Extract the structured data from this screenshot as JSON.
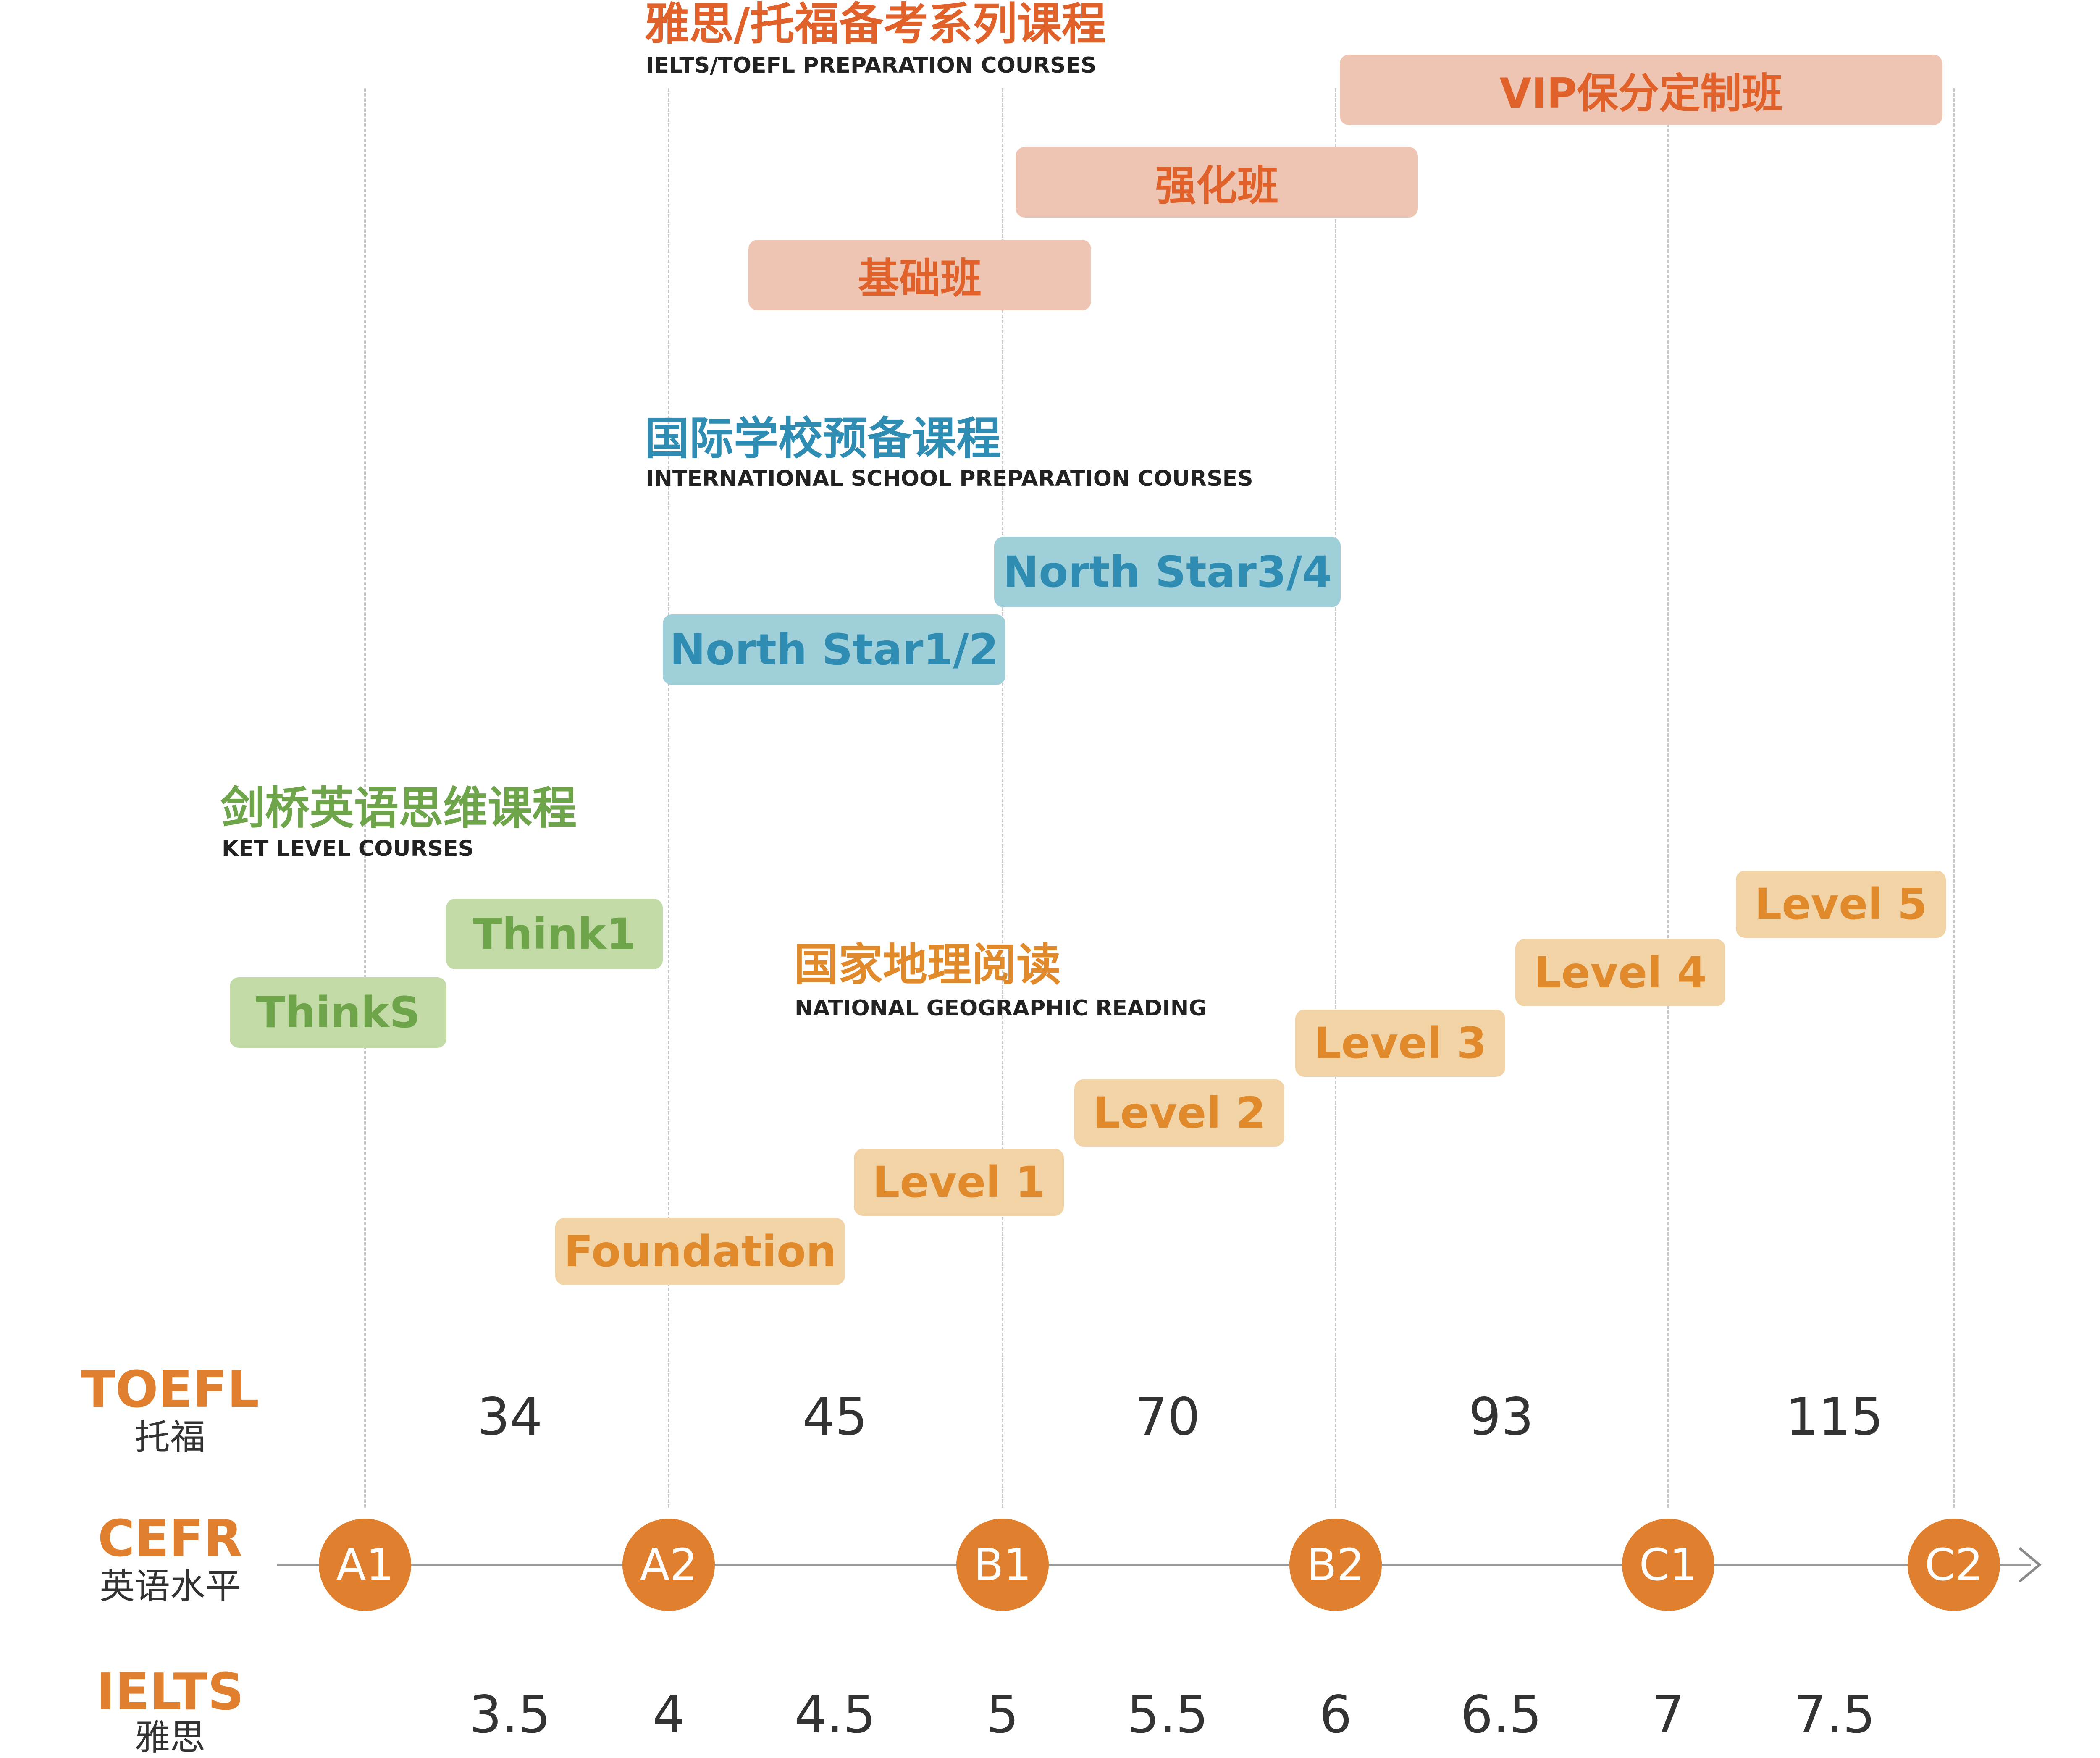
{
  "exam_section": {
    "title": "雅思/托福备考系列课程",
    "subtitle": "IELTS/TOEFL PREPARATION COURSES",
    "courses": [
      "VIP保分定制班",
      "强化班",
      "基础班"
    ]
  },
  "intl_section": {
    "title": "国际学校预备课程",
    "subtitle": "INTERNATIONAL SCHOOL PREPARATION COURSES",
    "courses": [
      "North Star3/4",
      "North Star1/2"
    ]
  },
  "ket_section": {
    "title": "剑桥英语思维课程",
    "subtitle": "KET LEVEL COURSES",
    "courses": [
      "Think1",
      "ThinkS"
    ]
  },
  "ng_section": {
    "title": "国家地理阅读",
    "subtitle": "NATIONAL GEOGRAPHIC READING",
    "courses": [
      "Level 5",
      "Level 4",
      "Level 3",
      "Level 2",
      "Level 1",
      "Foundation"
    ]
  },
  "scales": {
    "toefl": {
      "label": "TOEFL",
      "sublabel": "托福",
      "values": [
        "34",
        "45",
        "70",
        "93",
        "115"
      ]
    },
    "cefr": {
      "label": "CEFR",
      "sublabel": "英语水平",
      "levels": [
        "A1",
        "A2",
        "B1",
        "B2",
        "C1",
        "C2"
      ]
    },
    "ielts": {
      "label": "IELTS",
      "sublabel": "雅思",
      "values": [
        "3.5",
        "4",
        "4.5",
        "5",
        "5.5",
        "6",
        "6.5",
        "7",
        "7.5"
      ]
    }
  },
  "colors": {
    "exam": "#e0622a",
    "intl": "#2f8db4",
    "ket": "#6ea44a",
    "ng": "#e08a2c",
    "cefr_node": "#e07f2e"
  }
}
